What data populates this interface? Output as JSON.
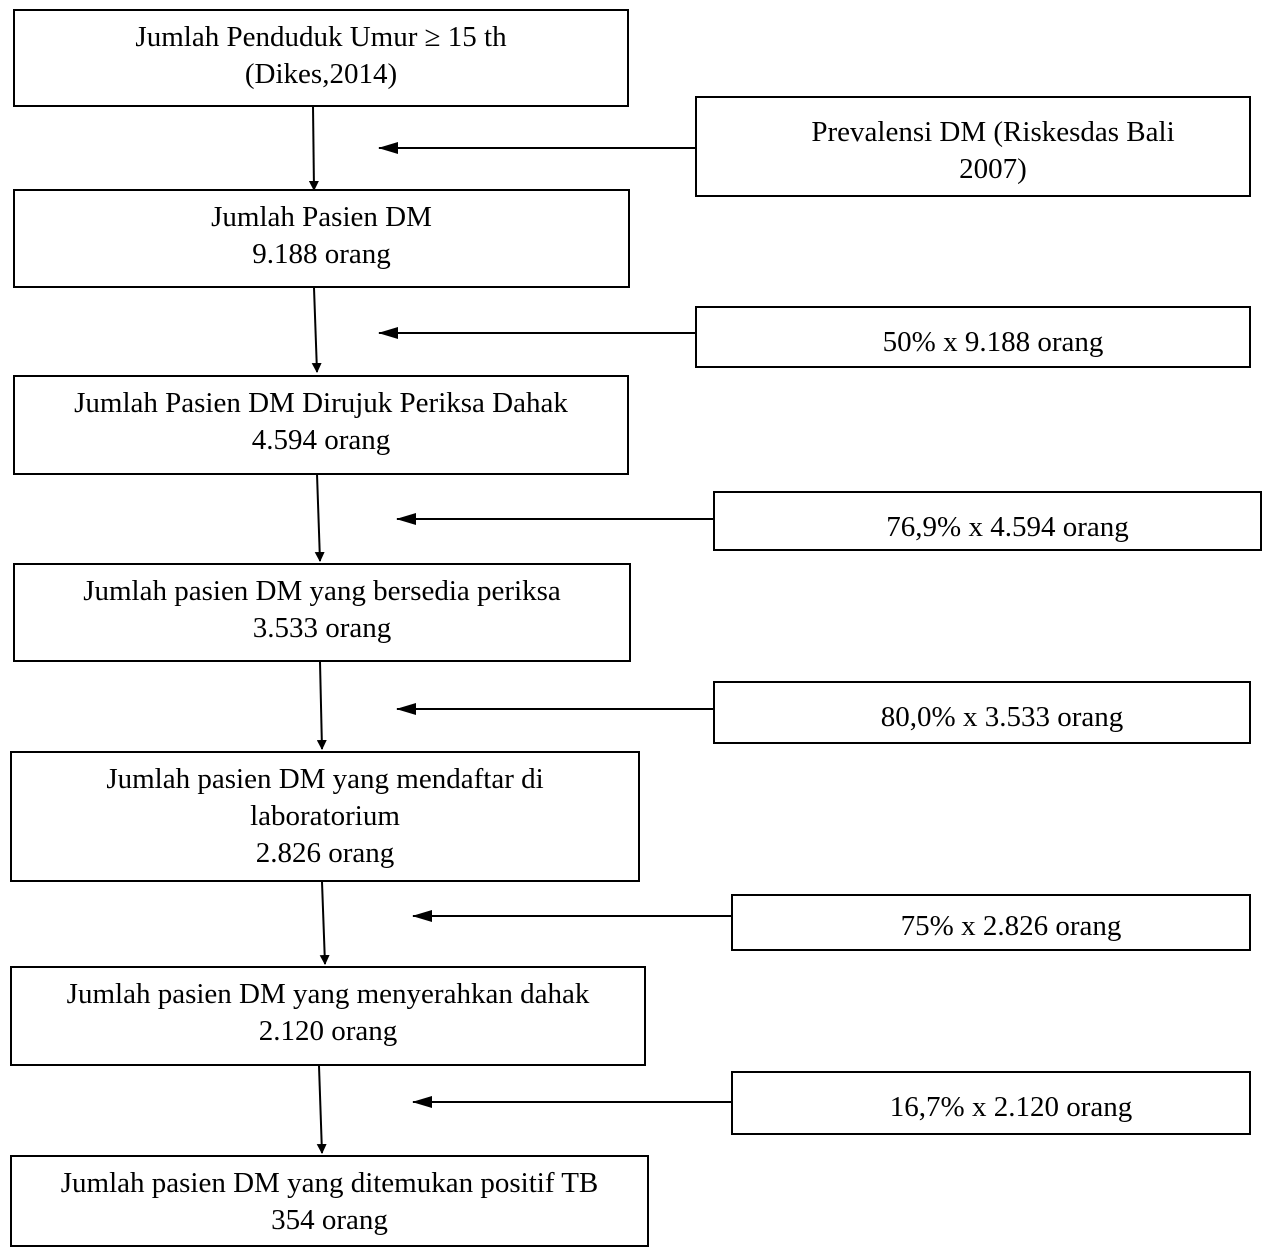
{
  "colors": {
    "line": "#000000",
    "background": "#ffffff"
  },
  "steps": [
    {
      "line1": "Jumlah Penduduk Umur ≥ 15 th",
      "line2": "(Dikes,2014)"
    },
    {
      "line1": "Jumlah Pasien DM",
      "line2": "9.188 orang"
    },
    {
      "line1": "Jumlah Pasien DM Dirujuk Periksa Dahak",
      "line2": "4.594 orang"
    },
    {
      "line1": "Jumlah pasien DM yang bersedia periksa",
      "line2": "3.533 orang"
    },
    {
      "line1": "Jumlah pasien DM yang mendaftar di",
      "line2": "laboratorium",
      "line3": "2.826 orang"
    },
    {
      "line1": "Jumlah pasien DM yang menyerahkan dahak",
      "line2": "2.120 orang"
    },
    {
      "line1": "Jumlah pasien DM yang ditemukan positif TB",
      "line2": "354 orang"
    }
  ],
  "factors": [
    {
      "line1": "Prevalensi DM (Riskesdas Bali",
      "line2": "2007)"
    },
    {
      "line1": "50% x 9.188 orang"
    },
    {
      "line1": "76,9% x 4.594 orang"
    },
    {
      "line1": "80,0% x 3.533 orang"
    },
    {
      "line1": "75% x 2.826 orang"
    },
    {
      "line1": "16,7% x 2.120 orang"
    }
  ]
}
